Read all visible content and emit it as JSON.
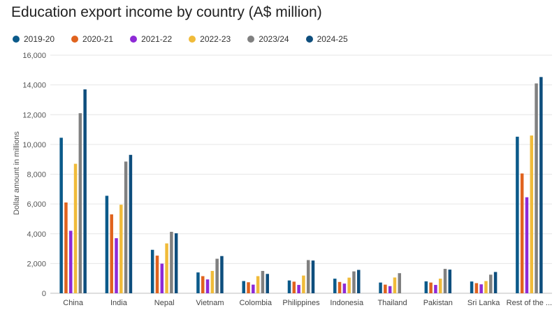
{
  "chart_data": {
    "type": "bar",
    "title": "Education export income by country (A$ million)",
    "xlabel": "",
    "ylabel": "Dollar amount in millions",
    "ylim": [
      0,
      16000
    ],
    "yticks": [
      0,
      2000,
      4000,
      6000,
      8000,
      10000,
      12000,
      14000,
      16000
    ],
    "ytick_labels": [
      "0",
      "2,000",
      "4,000",
      "6,000",
      "8,000",
      "10,000",
      "12,000",
      "14,000",
      "16,000"
    ],
    "grid": true,
    "legend_position": "top-left",
    "categories": [
      "China",
      "India",
      "Nepal",
      "Vietnam",
      "Colombia",
      "Philippines",
      "Indonesia",
      "Thailand",
      "Pakistan",
      "Sri Lanka",
      "Rest of the ..."
    ],
    "series": [
      {
        "name": "2019-20",
        "color": "#0b5a8a",
        "values": [
          10450,
          6550,
          2920,
          1400,
          820,
          860,
          980,
          720,
          800,
          790,
          10520
        ]
      },
      {
        "name": "2020-21",
        "color": "#e0631e",
        "values": [
          6100,
          5300,
          2530,
          1150,
          740,
          780,
          760,
          580,
          720,
          680,
          8050
        ]
      },
      {
        "name": "2021-22",
        "color": "#8e2ad6",
        "values": [
          4200,
          3700,
          1990,
          930,
          580,
          560,
          650,
          480,
          560,
          600,
          6450
        ]
      },
      {
        "name": "2022-23",
        "color": "#f0bb3a",
        "values": [
          8700,
          5950,
          3350,
          1500,
          1150,
          1190,
          1050,
          1060,
          980,
          820,
          10600
        ]
      },
      {
        "name": "2023/24",
        "color": "#808080",
        "values": [
          12100,
          8850,
          4130,
          2320,
          1500,
          2230,
          1470,
          1350,
          1640,
          1250,
          14100
        ]
      },
      {
        "name": "2024-25",
        "color": "#0e4e7d",
        "values": [
          13700,
          9300,
          4030,
          2500,
          1300,
          2200,
          1570,
          0,
          1590,
          1430,
          14530
        ]
      }
    ]
  }
}
